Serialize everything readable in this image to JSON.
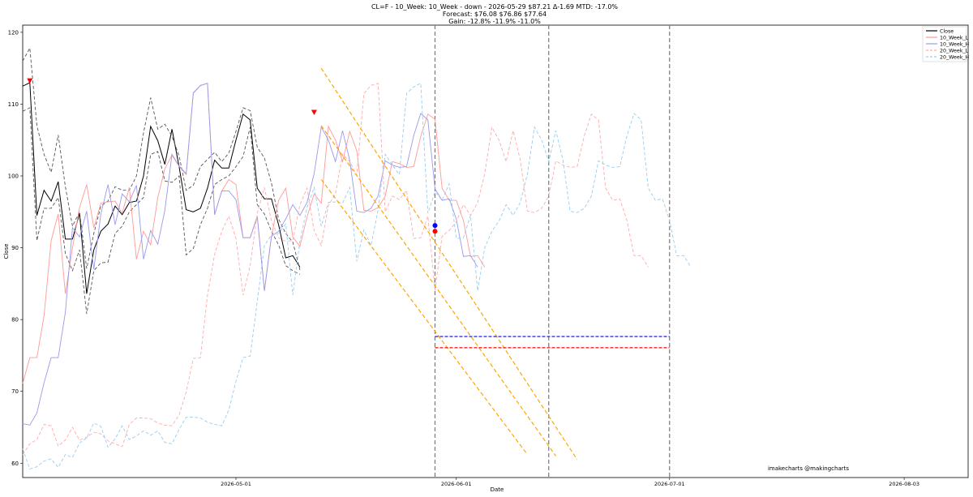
{
  "title_lines": [
    "CL=F - 10_Week: 10_Week - down - 2026-05-29 $87.21 Δ-1.69 MTD: -17.0%",
    "Forecast: $76.08  $76.86  $77.64",
    "Gain: -12.8%  -11.9%  -11.0%"
  ],
  "watermark": "imakecharts @makingcharts",
  "chart_data": {
    "type": "line",
    "xlabel": "Date",
    "ylabel": "Close",
    "xlim": [
      "2026-04-01",
      "2026-08-12"
    ],
    "ylim": [
      58,
      121
    ],
    "x_ticks": [
      "2026-05-01",
      "2026-06-01",
      "2026-07-01",
      "2026-08-03"
    ],
    "y_ticks": [
      60,
      70,
      80,
      90,
      100,
      110,
      120
    ],
    "legend": {
      "position": "top-right",
      "entries": [
        "Close",
        "10_Week_L",
        "10_Week_H",
        "20_Week_L",
        "20_Week_H"
      ]
    },
    "colors": {
      "close": "#000000",
      "band_dashed": "#555555",
      "week10_L": "#ff9999",
      "week10_H": "#9999ee",
      "week20_L": "#ffaaaa",
      "week20_H": "#99ccee",
      "trend": "#ffa500",
      "forecast_blue": "#0000ff",
      "forecast_red": "#ff0000",
      "vline": "#777777"
    },
    "series": [
      {
        "name": "Close",
        "style": "solid",
        "color": "#000000",
        "start": "2026-04-01",
        "values": [
          112.5,
          113,
          94.5,
          98,
          96.5,
          99.2,
          91.2,
          91.2,
          94.8,
          83.6,
          89.7,
          92.3,
          93.3,
          95.8,
          94.6,
          96.3,
          96.5,
          100,
          106.9,
          104.9,
          101.6,
          106.5,
          101.3,
          95.3,
          95,
          95.5,
          98.3,
          102.2,
          101.1,
          101.1,
          105,
          108.6,
          107.8,
          98.3,
          96.8,
          96.8,
          93.2,
          88.6,
          88.9,
          87.3
        ]
      },
      {
        "name": "upper band",
        "style": "dashed",
        "color": "#555555",
        "start": "2026-04-01",
        "values": [
          116,
          117.8,
          107,
          103,
          100.5,
          105.7,
          98.5,
          93,
          95,
          87.1,
          92,
          95.8,
          96.5,
          98.5,
          98,
          98,
          100,
          106,
          110.9,
          106.5,
          107.2,
          105.5,
          102.8,
          98,
          98.7,
          101.3,
          102.3,
          103.3,
          102,
          103.2,
          106.2,
          109.5,
          109.1,
          104,
          102.5,
          99,
          94,
          92,
          90.8,
          86.9
        ]
      },
      {
        "name": "lower band",
        "style": "dashed",
        "color": "#555555",
        "start": "2026-04-01",
        "values": [
          109,
          109.5,
          91,
          95.5,
          95.5,
          97,
          89.2,
          86.8,
          89.7,
          80.8,
          86.8,
          87.9,
          88,
          92,
          93,
          95,
          96,
          97,
          103,
          103.4,
          99.3,
          99.1,
          100,
          89,
          89.9,
          93.2,
          95.5,
          98.8,
          99.5,
          100,
          101.3,
          102.7,
          106.8,
          96,
          94.7,
          92.3,
          90.4,
          87.5,
          86.8,
          86.3
        ]
      },
      {
        "name": "10_Week_L",
        "style": "solid",
        "color": "#ff9999",
        "start": "2026-04-01",
        "values": [
          71.1,
          74.7,
          74.7,
          80.5,
          91,
          94.7,
          83.6,
          90,
          95.6,
          98.8,
          92.8,
          96.2,
          96.4,
          96.5,
          94.8,
          98.4,
          88.4,
          92.3,
          90.4,
          97,
          101,
          102.9,
          101.3,
          100.2,
          111.6,
          112.6,
          112.9,
          94.6,
          97.9,
          99.5,
          98.8,
          91.4,
          91.4,
          94.4,
          84,
          91.6,
          96.6,
          98.3,
          91.5,
          90.2,
          94.3,
          97.5,
          96.2,
          106.9,
          105,
          102,
          106.2,
          103.5,
          95.2,
          95.1,
          95.6,
          97.2,
          102,
          101.7,
          101.2,
          101.3,
          105.5,
          108.6,
          107.9,
          98.3,
          96.6,
          96.6,
          93.8,
          88.8,
          88.9,
          87.3
        ]
      },
      {
        "name": "10_Week_H",
        "style": "solid",
        "color": "#9999ee",
        "start": "2026-04-01",
        "values": [
          65.5,
          65.3,
          67,
          71.2,
          74.7,
          74.7,
          81,
          92.8,
          91.5,
          95.1,
          87,
          94.7,
          98.8,
          93.2,
          97.5,
          96.4,
          98.7,
          88.4,
          92.4,
          90.5,
          95.2,
          103,
          101.4,
          100.3,
          111.5,
          112.6,
          112.9,
          94.6,
          97.9,
          97.9,
          96.7,
          91.4,
          91.4,
          94.3,
          84,
          91.6,
          92.3,
          94,
          96,
          94.5,
          96.3,
          100.3,
          106.8,
          105,
          102,
          106.3,
          102.2,
          95.1,
          94.9,
          95.5,
          97.2,
          102.1,
          101.5,
          101.2,
          101.3,
          105.6,
          108.7,
          107.8,
          98.2,
          96.6,
          96.8,
          94,
          88.8,
          88.9,
          87.3
        ]
      },
      {
        "name": "20_Week_L",
        "style": "dashed",
        "color": "#ffaaaa",
        "start": "2026-04-01",
        "values": [
          61.2,
          62.7,
          63.3,
          65.4,
          65.2,
          62.4,
          63.2,
          65,
          63.2,
          63.6,
          64.3,
          64.1,
          63.1,
          62.7,
          62.3,
          65.4,
          66.3,
          66.3,
          66.2,
          65.6,
          65.3,
          65.2,
          66.7,
          69.9,
          74.6,
          74.7,
          83.4,
          89.1,
          92.3,
          94.4,
          91.3,
          83.4,
          87.5,
          94.8,
          98.4,
          93.7,
          91.4,
          90.9,
          91,
          96,
          98.3,
          92.4,
          90.3,
          95.9,
          97.5,
          103,
          102,
          100.1,
          111.5,
          112.6,
          112.9,
          95,
          97.2,
          96.7,
          98,
          91.3,
          91.4,
          94.4,
          84,
          91.6,
          92.4,
          93.6,
          96,
          94.5,
          96.3,
          100.3,
          106.8,
          105,
          102,
          106.3,
          102.2,
          95.1,
          94.9,
          95.5,
          97.2,
          102.1,
          101.5,
          101.2,
          101.3,
          105.6,
          108.6,
          107.8,
          98.3,
          96.6,
          96.8,
          93.8,
          88.9,
          88.9,
          87.3
        ]
      },
      {
        "name": "20_Week_H",
        "style": "dashed",
        "color": "#99ccee",
        "start": "2026-04-01",
        "values": [
          62,
          59.2,
          59.5,
          60.3,
          60.6,
          59.4,
          61.2,
          60.8,
          62.8,
          63.5,
          65.6,
          65.1,
          62.2,
          63.4,
          65.2,
          63.3,
          63.8,
          64.5,
          63.9,
          64.5,
          62.9,
          62.7,
          64.7,
          66.4,
          66.4,
          66.3,
          65.7,
          65.4,
          65.2,
          67.4,
          71.4,
          74.7,
          74.9,
          82.5,
          90.3,
          91.8,
          92,
          93.3,
          83.4,
          90.9,
          95.6,
          98.4,
          93,
          96.3,
          96.4,
          96.2,
          98.4,
          88.1,
          92.5,
          90.3,
          95.3,
          103,
          101.5,
          100.2,
          111.5,
          112.4,
          112.9,
          94.8,
          97.8,
          96.6,
          98.9,
          91.3,
          91.4,
          94.5,
          84,
          90,
          92.3,
          93.7,
          96,
          94.5,
          96.3,
          100.3,
          106.8,
          105,
          102,
          106.3,
          102.2,
          95.1,
          94.9,
          95.5,
          97.2,
          102.1,
          101.5,
          101.2,
          101.3,
          105.6,
          108.7,
          107.8,
          98.3,
          96.6,
          96.8,
          93.8,
          88.9,
          88.9,
          87.3
        ]
      }
    ],
    "trend_lines": [
      {
        "from": [
          "2026-05-13",
          115
        ],
        "to": [
          "2026-06-18",
          60.5
        ]
      },
      {
        "from": [
          "2026-05-13",
          107
        ],
        "to": [
          "2026-06-15",
          61
        ]
      },
      {
        "from": [
          "2026-05-13",
          99.5
        ],
        "to": [
          "2026-06-11",
          61.2
        ]
      }
    ],
    "forecast_levels": [
      {
        "value": 77.64,
        "color": "#0000ff",
        "from": "2026-05-29",
        "to": "2026-07-01"
      },
      {
        "value": 76.08,
        "color": "#ff0000",
        "from": "2026-05-29",
        "to": "2026-07-01"
      }
    ],
    "vertical_markers": [
      "2026-05-29",
      "2026-06-14",
      "2026-07-01"
    ],
    "markers": [
      {
        "x": "2026-04-02",
        "y": 113.2,
        "shape": "triangle-down",
        "color": "#ff0000"
      },
      {
        "x": "2026-05-12",
        "y": 108.8,
        "shape": "triangle-down",
        "color": "#ff0000"
      },
      {
        "x": "2026-05-29",
        "y": 93.1,
        "shape": "circle",
        "color": "#0000ff"
      },
      {
        "x": "2026-05-29",
        "y": 92.3,
        "shape": "circle",
        "color": "#ff0000"
      }
    ]
  }
}
